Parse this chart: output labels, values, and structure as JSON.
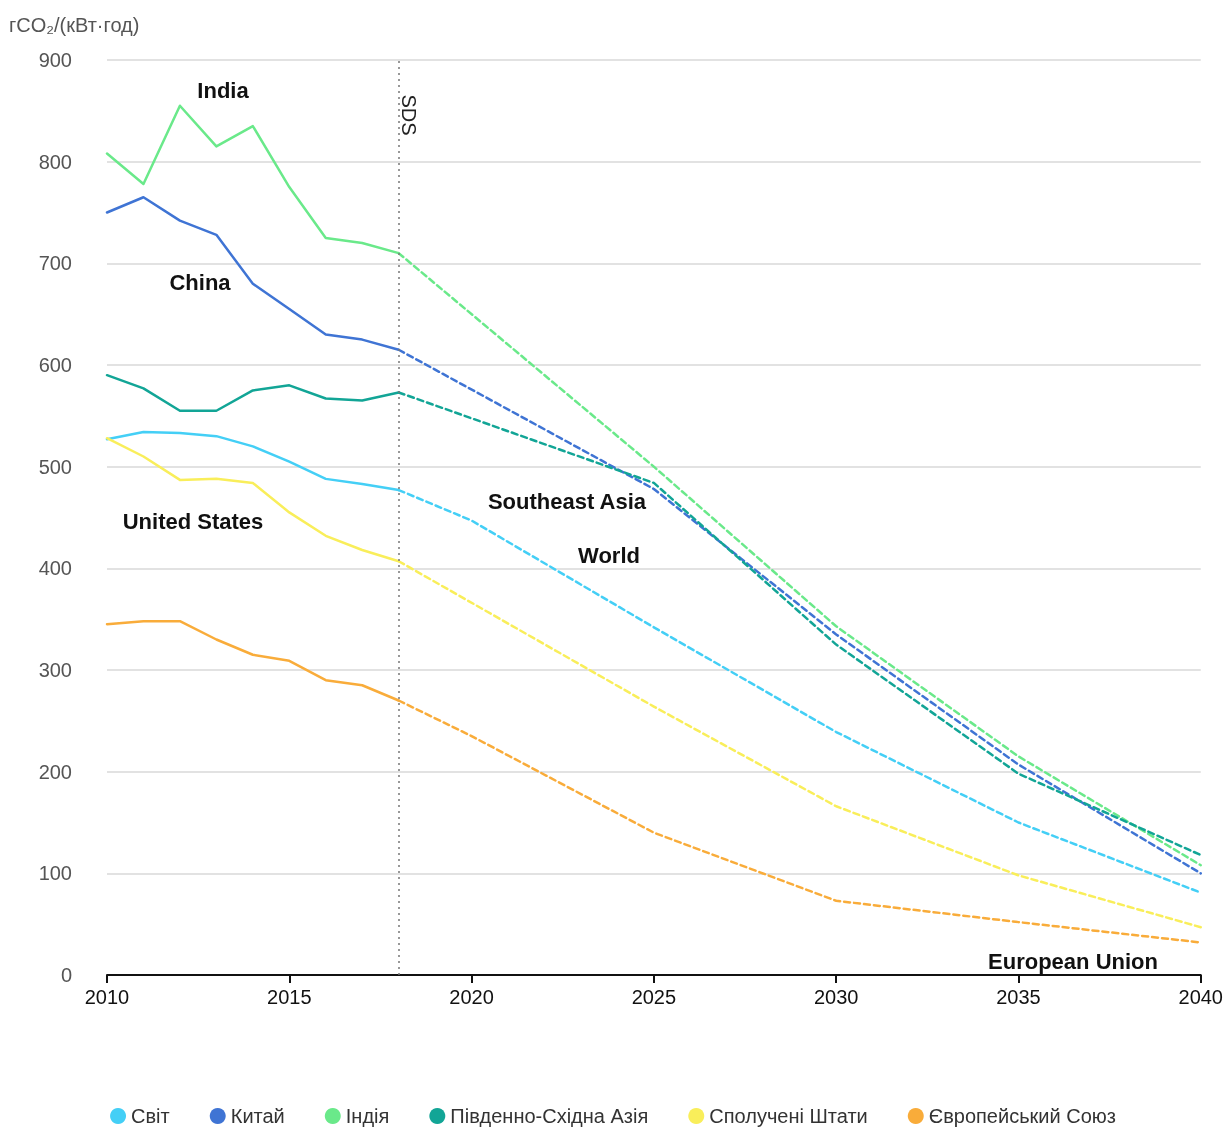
{
  "chart_data": {
    "type": "line",
    "ylabel": "гCO₂/(кВт·год)",
    "xlim": [
      2010,
      2040
    ],
    "xticks": [
      2010,
      2015,
      2020,
      2025,
      2030,
      2035,
      2040
    ],
    "ylim": [
      0,
      900
    ],
    "yticks": [
      0,
      100,
      200,
      300,
      400,
      500,
      600,
      700,
      800,
      900
    ],
    "grid": "y",
    "legend": "bottom",
    "marker": "none",
    "series": [
      {
        "name": "Світ",
        "color": "#44cff6",
        "line_style": "solid",
        "x": [
          2010,
          2011,
          2012,
          2013,
          2014,
          2015,
          2016,
          2017,
          2018
        ],
        "values": [
          527,
          534,
          533,
          530,
          520,
          505,
          488,
          483,
          477
        ]
      },
      {
        "name": "Китай",
        "color": "#3f74d4",
        "line_style": "solid",
        "x": [
          2010,
          2011,
          2012,
          2013,
          2014,
          2015,
          2016,
          2017,
          2018
        ],
        "values": [
          750,
          765,
          742,
          728,
          680,
          655,
          630,
          625,
          615
        ]
      },
      {
        "name": "Індія",
        "color": "#6ae98a",
        "line_style": "solid",
        "x": [
          2010,
          2011,
          2012,
          2013,
          2014,
          2015,
          2016,
          2017,
          2018
        ],
        "values": [
          808,
          778,
          855,
          815,
          835,
          775,
          725,
          720,
          710
        ]
      },
      {
        "name": "Південно-Східна Азія",
        "color": "#12a596",
        "line_style": "solid",
        "x": [
          2010,
          2011,
          2012,
          2013,
          2014,
          2015,
          2016,
          2017,
          2018
        ],
        "values": [
          590,
          577,
          555,
          555,
          575,
          580,
          567,
          565,
          573
        ]
      },
      {
        "name": "Сполучені Штати",
        "color": "#f9ee5a",
        "line_style": "solid",
        "x": [
          2010,
          2011,
          2012,
          2013,
          2014,
          2015,
          2016,
          2017,
          2018
        ],
        "values": [
          528,
          510,
          487,
          488,
          484,
          455,
          432,
          418,
          407
        ]
      },
      {
        "name": "Європейський Союз",
        "color": "#f9ac3a",
        "line_style": "solid",
        "x": [
          2010,
          2011,
          2012,
          2013,
          2014,
          2015,
          2016,
          2017,
          2018
        ],
        "values": [
          345,
          348,
          348,
          330,
          315,
          309,
          290,
          285,
          270
        ]
      },
      {
        "color": "#44cff6",
        "line_style": "dashed",
        "x": [
          2018,
          2020,
          2025,
          2030,
          2035,
          2040
        ],
        "values": [
          477,
          447,
          342,
          239,
          150,
          81
        ]
      },
      {
        "color": "#3f74d4",
        "line_style": "dashed",
        "x": [
          2018,
          2025,
          2030,
          2035,
          2040
        ],
        "values": [
          615,
          478,
          335,
          207,
          100
        ]
      },
      {
        "color": "#6ae98a",
        "line_style": "dashed",
        "x": [
          2018,
          2025,
          2030,
          2035,
          2040
        ],
        "values": [
          710,
          500,
          343,
          215,
          108
        ]
      },
      {
        "color": "#12a596",
        "line_style": "dashed",
        "x": [
          2018,
          2025,
          2030,
          2035,
          2040
        ],
        "values": [
          573,
          484,
          325,
          198,
          118
        ]
      },
      {
        "color": "#f9ee5a",
        "line_style": "dashed",
        "x": [
          2018,
          2025,
          2030,
          2035,
          2040
        ],
        "values": [
          407,
          264,
          166,
          98,
          47
        ]
      },
      {
        "color": "#f9ac3a",
        "line_style": "dashed",
        "x": [
          2018,
          2020,
          2025,
          2030,
          2035,
          2040
        ],
        "values": [
          270,
          235,
          140,
          73,
          52,
          32
        ]
      }
    ],
    "ref_lines": [
      {
        "axis": "x",
        "value": 2018,
        "label": "SDS",
        "color": "#777777",
        "line_style": "dotted"
      }
    ],
    "annotations": [
      "India",
      "China",
      "Southeast Asia",
      "World",
      "United States",
      "European Union"
    ]
  }
}
